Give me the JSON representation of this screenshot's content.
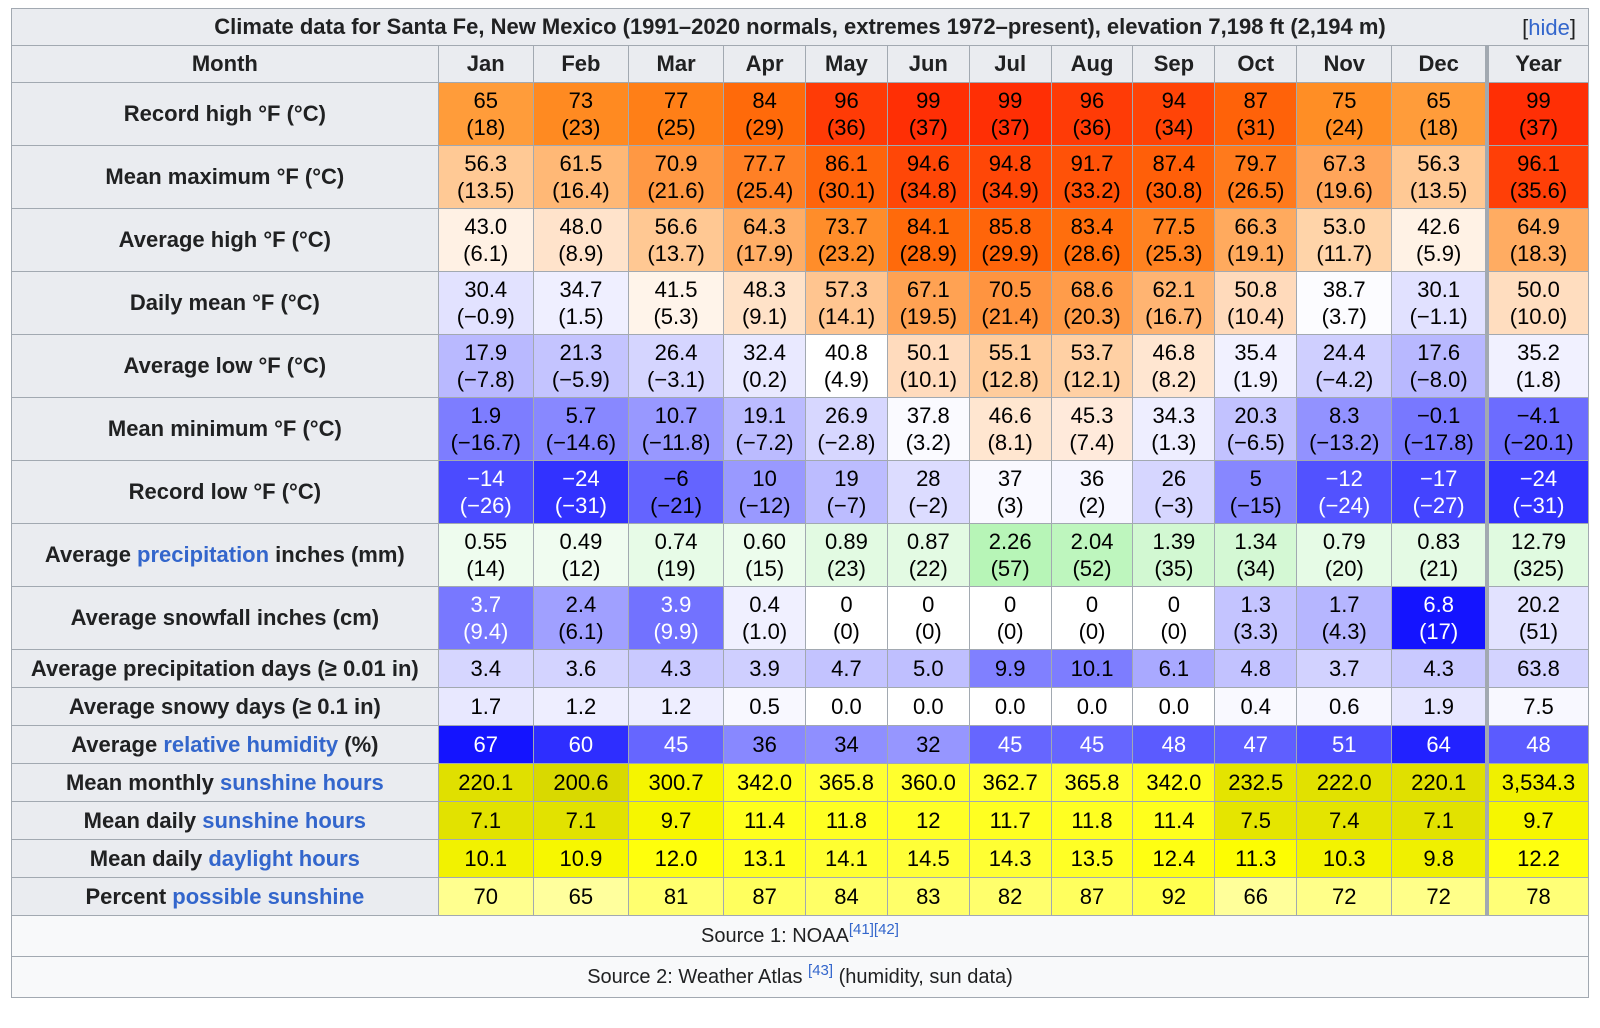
{
  "table": {
    "title": "Climate data for Santa Fe, New Mexico (1991–2020 normals, extremes 1972–present), elevation 7,198 ft (2,194 m)",
    "hide_label": "hide",
    "header": {
      "month_label": "Month",
      "months": [
        "Jan",
        "Feb",
        "Mar",
        "Apr",
        "May",
        "Jun",
        "Jul",
        "Aug",
        "Sep",
        "Oct",
        "Nov",
        "Dec",
        "Year"
      ]
    },
    "rows": [
      {
        "label_parts": [
          {
            "text": "Record high °F (°C)"
          }
        ],
        "tall": true,
        "values": [
          "65",
          "73",
          "77",
          "84",
          "96",
          "99",
          "99",
          "96",
          "94",
          "87",
          "75",
          "65",
          "99"
        ],
        "sub": [
          "(18)",
          "(23)",
          "(25)",
          "(29)",
          "(36)",
          "(37)",
          "(37)",
          "(36)",
          "(34)",
          "(31)",
          "(24)",
          "(18)",
          "(37)"
        ],
        "bg": [
          "#ff9c3a",
          "#ff8a21",
          "#ff7f17",
          "#ff6a0a",
          "#ff3b06",
          "#ff2f05",
          "#ff2f05",
          "#ff3b06",
          "#ff4407",
          "#ff6209",
          "#ff8e25",
          "#ff9c3a",
          "#ff2f05"
        ],
        "fg": [
          "#000000",
          "#000000",
          "#000000",
          "#000000",
          "#000000",
          "#000000",
          "#000000",
          "#000000",
          "#000000",
          "#000000",
          "#000000",
          "#000000",
          "#000000"
        ]
      },
      {
        "label_parts": [
          {
            "text": "Mean maximum °F (°C)"
          }
        ],
        "tall": true,
        "values": [
          "56.3",
          "61.5",
          "70.9",
          "77.7",
          "86.1",
          "94.6",
          "94.8",
          "91.7",
          "87.4",
          "79.7",
          "67.3",
          "56.3",
          "96.1"
        ],
        "sub": [
          "(13.5)",
          "(16.4)",
          "(21.6)",
          "(25.4)",
          "(30.1)",
          "(34.8)",
          "(34.9)",
          "(33.2)",
          "(30.8)",
          "(26.5)",
          "(19.6)",
          "(13.5)",
          "(35.6)"
        ],
        "bg": [
          "#ffc995",
          "#ffb876",
          "#ff9843",
          "#ff8025",
          "#ff640b",
          "#ff4707",
          "#ff4707",
          "#ff5208",
          "#ff5f09",
          "#ff7a1c",
          "#ffa55a",
          "#ffc995",
          "#ff3f07"
        ],
        "fg": [
          "#000000",
          "#000000",
          "#000000",
          "#000000",
          "#000000",
          "#000000",
          "#000000",
          "#000000",
          "#000000",
          "#000000",
          "#000000",
          "#000000",
          "#000000"
        ]
      },
      {
        "label_parts": [
          {
            "text": "Average high °F (°C)"
          }
        ],
        "tall": true,
        "values": [
          "43.0",
          "48.0",
          "56.6",
          "64.3",
          "73.7",
          "84.1",
          "85.8",
          "83.4",
          "77.5",
          "66.3",
          "53.0",
          "42.6",
          "64.9"
        ],
        "sub": [
          "(6.1)",
          "(8.9)",
          "(13.7)",
          "(17.9)",
          "(23.2)",
          "(28.9)",
          "(29.9)",
          "(28.6)",
          "(25.3)",
          "(19.1)",
          "(11.7)",
          "(5.9)",
          "(18.3)"
        ],
        "bg": [
          "#fff1e4",
          "#ffe3cb",
          "#ffc893",
          "#ffae66",
          "#ff8d2a",
          "#ff6a0b",
          "#ff650a",
          "#ff6e0d",
          "#ff8221",
          "#ffaa5e",
          "#ffd4a9",
          "#fff2e5",
          "#ffac62"
        ],
        "fg": [
          "#000000",
          "#000000",
          "#000000",
          "#000000",
          "#000000",
          "#000000",
          "#000000",
          "#000000",
          "#000000",
          "#000000",
          "#000000",
          "#000000",
          "#000000"
        ]
      },
      {
        "label_parts": [
          {
            "text": "Daily mean °F (°C)"
          }
        ],
        "tall": true,
        "values": [
          "30.4",
          "34.7",
          "41.5",
          "48.3",
          "57.3",
          "67.1",
          "70.5",
          "68.6",
          "62.1",
          "50.8",
          "38.7",
          "30.1",
          "50.0"
        ],
        "sub": [
          "(−0.9)",
          "(1.5)",
          "(5.3)",
          "(9.1)",
          "(14.1)",
          "(19.5)",
          "(21.4)",
          "(20.3)",
          "(16.7)",
          "(10.4)",
          "(3.7)",
          "(−1.1)",
          "(10.0)"
        ],
        "bg": [
          "#e2e2ff",
          "#efefff",
          "#fff4ea",
          "#ffe2c8",
          "#ffc590",
          "#ffa253",
          "#ff9440",
          "#ff9c4a",
          "#ffb472",
          "#ffdabb",
          "#fcfcff",
          "#e1e1ff",
          "#ffddbf"
        ],
        "fg": [
          "#000000",
          "#000000",
          "#000000",
          "#000000",
          "#000000",
          "#000000",
          "#000000",
          "#000000",
          "#000000",
          "#000000",
          "#000000",
          "#000000",
          "#000000"
        ]
      },
      {
        "label_parts": [
          {
            "text": "Average low °F (°C)"
          }
        ],
        "tall": true,
        "values": [
          "17.9",
          "21.3",
          "26.4",
          "32.4",
          "40.8",
          "50.1",
          "55.1",
          "53.7",
          "46.8",
          "35.4",
          "24.4",
          "17.6",
          "35.2"
        ],
        "sub": [
          "(−7.8)",
          "(−5.9)",
          "(−3.1)",
          "(0.2)",
          "(4.9)",
          "(10.1)",
          "(12.8)",
          "(12.1)",
          "(8.2)",
          "(1.9)",
          "(−4.2)",
          "(−8.0)",
          "(1.8)"
        ],
        "bg": [
          "#b9b9ff",
          "#c4c4ff",
          "#d5d5ff",
          "#e9e9ff",
          "#ffffff",
          "#ffdbbd",
          "#ffcc9c",
          "#ffd0a4",
          "#ffe6d1",
          "#f1f1ff",
          "#cfcfff",
          "#b8b8ff",
          "#f1f1ff"
        ],
        "fg": [
          "#000000",
          "#000000",
          "#000000",
          "#000000",
          "#000000",
          "#000000",
          "#000000",
          "#000000",
          "#000000",
          "#000000",
          "#000000",
          "#000000",
          "#000000"
        ]
      },
      {
        "label_parts": [
          {
            "text": "Mean minimum °F (°C)"
          }
        ],
        "tall": true,
        "values": [
          "1.9",
          "5.7",
          "10.7",
          "19.1",
          "26.9",
          "37.8",
          "46.6",
          "45.3",
          "34.3",
          "20.3",
          "8.3",
          "−0.1",
          "−4.1"
        ],
        "sub": [
          "(−16.7)",
          "(−14.6)",
          "(−11.8)",
          "(−7.2)",
          "(−2.8)",
          "(3.2)",
          "(8.1)",
          "(7.4)",
          "(1.3)",
          "(−6.5)",
          "(−13.2)",
          "(−17.8)",
          "(−20.1)"
        ],
        "bg": [
          "#7d7dff",
          "#8888ff",
          "#9898ff",
          "#bbbbff",
          "#d7d7ff",
          "#fafaff",
          "#ffe6d0",
          "#ffeadb",
          "#eeeeff",
          "#c2c2ff",
          "#9292ff",
          "#7878ff",
          "#6c6cff"
        ],
        "fg": [
          "#000000",
          "#000000",
          "#000000",
          "#000000",
          "#000000",
          "#000000",
          "#000000",
          "#000000",
          "#000000",
          "#000000",
          "#000000",
          "#000000",
          "#000000"
        ]
      },
      {
        "label_parts": [
          {
            "text": "Record low °F (°C)"
          }
        ],
        "tall": true,
        "values": [
          "−14",
          "−24",
          "−6",
          "10",
          "19",
          "28",
          "37",
          "36",
          "26",
          "5",
          "−12",
          "−17",
          "−24"
        ],
        "sub": [
          "(−26)",
          "(−31)",
          "(−21)",
          "(−12)",
          "(−7)",
          "(−2)",
          "(3)",
          "(2)",
          "(−3)",
          "(−15)",
          "(−24)",
          "(−27)",
          "(−31)"
        ],
        "bg": [
          "#4b4bff",
          "#3232ff",
          "#6464ff",
          "#9999ff",
          "#bcbcff",
          "#dcdcff",
          "#f9f9ff",
          "#f6f6ff",
          "#d6d6ff",
          "#8787ff",
          "#5252ff",
          "#4444ff",
          "#3232ff"
        ],
        "fg": [
          "#ffffff",
          "#ffffff",
          "#000000",
          "#000000",
          "#000000",
          "#000000",
          "#000000",
          "#000000",
          "#000000",
          "#000000",
          "#ffffff",
          "#ffffff",
          "#ffffff"
        ]
      },
      {
        "label_parts": [
          {
            "text": "Average "
          },
          {
            "text": "precipitation",
            "link": true
          },
          {
            "text": " inches (mm)"
          }
        ],
        "tall": true,
        "values": [
          "0.55",
          "0.49",
          "0.74",
          "0.60",
          "0.89",
          "0.87",
          "2.26",
          "2.04",
          "1.39",
          "1.34",
          "0.79",
          "0.83",
          "12.79"
        ],
        "sub": [
          "(14)",
          "(12)",
          "(19)",
          "(15)",
          "(23)",
          "(22)",
          "(57)",
          "(52)",
          "(35)",
          "(34)",
          "(20)",
          "(21)",
          "(325)"
        ],
        "bg": [
          "#eefcee",
          "#f0fcf0",
          "#e7fbe7",
          "#ecfcec",
          "#e2fae2",
          "#e3fae3",
          "#b7f5b7",
          "#bef6be",
          "#d2f8d2",
          "#d4f8d4",
          "#e6fbe6",
          "#e4fae4",
          "#e0fae0"
        ],
        "fg": [
          "#000000",
          "#000000",
          "#000000",
          "#000000",
          "#000000",
          "#000000",
          "#000000",
          "#000000",
          "#000000",
          "#000000",
          "#000000",
          "#000000",
          "#000000"
        ]
      },
      {
        "label_parts": [
          {
            "text": "Average snowfall inches (cm)"
          }
        ],
        "tall": true,
        "values": [
          "3.7",
          "2.4",
          "3.9",
          "0.4",
          "0",
          "0",
          "0",
          "0",
          "0",
          "1.3",
          "1.7",
          "6.8",
          "20.2"
        ],
        "sub": [
          "(9.4)",
          "(6.1)",
          "(9.9)",
          "(1.0)",
          "(0)",
          "(0)",
          "(0)",
          "(0)",
          "(0)",
          "(3.3)",
          "(4.3)",
          "(17)",
          "(51)"
        ],
        "bg": [
          "#7878ff",
          "#a0a0ff",
          "#7272ff",
          "#f0f0ff",
          "#ffffff",
          "#ffffff",
          "#ffffff",
          "#ffffff",
          "#ffffff",
          "#c4c4ff",
          "#b6b6ff",
          "#1414ff",
          "#e2e2ff"
        ],
        "fg": [
          "#ffffff",
          "#000000",
          "#ffffff",
          "#000000",
          "#000000",
          "#000000",
          "#000000",
          "#000000",
          "#000000",
          "#000000",
          "#000000",
          "#ffffff",
          "#000000"
        ]
      },
      {
        "label_parts": [
          {
            "text": "Average precipitation days (≥ 0.01 in)"
          }
        ],
        "tall": false,
        "values": [
          "3.4",
          "3.6",
          "4.3",
          "3.9",
          "4.7",
          "5.0",
          "9.9",
          "10.1",
          "6.1",
          "4.8",
          "3.7",
          "4.3",
          "63.8"
        ],
        "bg": [
          "#d6d6ff",
          "#d3d3ff",
          "#c9c9ff",
          "#cfcfff",
          "#c3c3ff",
          "#bfbfff",
          "#8080ff",
          "#7d7dff",
          "#a9a9ff",
          "#c2c2ff",
          "#d2d2ff",
          "#c9c9ff",
          "#d3d3ff"
        ],
        "fg": [
          "#000000",
          "#000000",
          "#000000",
          "#000000",
          "#000000",
          "#000000",
          "#000000",
          "#000000",
          "#000000",
          "#000000",
          "#000000",
          "#000000",
          "#000000"
        ]
      },
      {
        "label_parts": [
          {
            "text": "Average snowy days (≥ 0.1 in)"
          }
        ],
        "tall": false,
        "values": [
          "1.7",
          "1.2",
          "1.2",
          "0.5",
          "0.0",
          "0.0",
          "0.0",
          "0.0",
          "0.0",
          "0.4",
          "0.6",
          "1.9",
          "7.5"
        ],
        "bg": [
          "#e8e8ff",
          "#eeeeff",
          "#eeeeff",
          "#f8f8ff",
          "#ffffff",
          "#ffffff",
          "#ffffff",
          "#ffffff",
          "#ffffff",
          "#f9f9ff",
          "#f7f7ff",
          "#e6e6ff",
          "#f8f8ff"
        ],
        "fg": [
          "#000000",
          "#000000",
          "#000000",
          "#000000",
          "#000000",
          "#000000",
          "#000000",
          "#000000",
          "#000000",
          "#000000",
          "#000000",
          "#000000",
          "#000000"
        ]
      },
      {
        "label_parts": [
          {
            "text": "Average "
          },
          {
            "text": "relative humidity",
            "link": true
          },
          {
            "text": " (%)"
          }
        ],
        "tall": false,
        "values": [
          "67",
          "60",
          "45",
          "36",
          "34",
          "32",
          "45",
          "45",
          "48",
          "47",
          "51",
          "64",
          "48"
        ],
        "bg": [
          "#1414ff",
          "#2e2eff",
          "#6666ff",
          "#8888ff",
          "#8f8fff",
          "#9696ff",
          "#6666ff",
          "#6666ff",
          "#5b5bff",
          "#5f5fff",
          "#5050ff",
          "#2222ff",
          "#5b5bff"
        ],
        "fg": [
          "#ffffff",
          "#ffffff",
          "#ffffff",
          "#000000",
          "#000000",
          "#000000",
          "#ffffff",
          "#ffffff",
          "#ffffff",
          "#ffffff",
          "#ffffff",
          "#ffffff",
          "#ffffff"
        ]
      },
      {
        "label_parts": [
          {
            "text": "Mean monthly "
          },
          {
            "text": "sunshine hours",
            "link": true
          }
        ],
        "tall": false,
        "values": [
          "220.1",
          "200.6",
          "300.7",
          "342.0",
          "365.8",
          "360.0",
          "362.7",
          "365.8",
          "342.0",
          "232.5",
          "222.0",
          "220.1",
          "3,534.3"
        ],
        "bg": [
          "#e0e000",
          "#d9d900",
          "#f5f500",
          "#fefe20",
          "#ffff33",
          "#ffff2d",
          "#ffff30",
          "#ffff33",
          "#fefe20",
          "#e4e400",
          "#e1e100",
          "#e0e000",
          "#f0f000"
        ],
        "fg": [
          "#000000",
          "#000000",
          "#000000",
          "#000000",
          "#000000",
          "#000000",
          "#000000",
          "#000000",
          "#000000",
          "#000000",
          "#000000",
          "#000000",
          "#000000"
        ]
      },
      {
        "label_parts": [
          {
            "text": "Mean daily "
          },
          {
            "text": "sunshine hours",
            "link": true
          }
        ],
        "tall": false,
        "values": [
          "7.1",
          "7.1",
          "9.7",
          "11.4",
          "11.8",
          "12",
          "11.7",
          "11.8",
          "11.4",
          "7.5",
          "7.4",
          "7.1",
          "9.7"
        ],
        "bg": [
          "#e2e200",
          "#e2e200",
          "#f6f600",
          "#ffff1c",
          "#ffff22",
          "#ffff26",
          "#ffff21",
          "#ffff22",
          "#ffff1c",
          "#e5e500",
          "#e4e400",
          "#e2e200",
          "#f6f600"
        ],
        "fg": [
          "#000000",
          "#000000",
          "#000000",
          "#000000",
          "#000000",
          "#000000",
          "#000000",
          "#000000",
          "#000000",
          "#000000",
          "#000000",
          "#000000",
          "#000000"
        ]
      },
      {
        "label_parts": [
          {
            "text": "Mean daily "
          },
          {
            "text": "daylight hours",
            "link": true
          }
        ],
        "tall": false,
        "values": [
          "10.1",
          "10.9",
          "12.0",
          "13.1",
          "14.1",
          "14.5",
          "14.3",
          "13.5",
          "12.4",
          "11.3",
          "10.3",
          "9.8",
          "12.2"
        ],
        "bg": [
          "#f2f200",
          "#f7f700",
          "#ffff0c",
          "#ffff1e",
          "#ffff30",
          "#ffff37",
          "#ffff33",
          "#ffff25",
          "#ffff12",
          "#fdfd02",
          "#f3f300",
          "#f0f000",
          "#ffff0f"
        ],
        "fg": [
          "#000000",
          "#000000",
          "#000000",
          "#000000",
          "#000000",
          "#000000",
          "#000000",
          "#000000",
          "#000000",
          "#000000",
          "#000000",
          "#000000",
          "#000000"
        ]
      },
      {
        "label_parts": [
          {
            "text": "Percent "
          },
          {
            "text": "possible sunshine",
            "link": true
          }
        ],
        "tall": false,
        "values": [
          "70",
          "65",
          "81",
          "87",
          "84",
          "83",
          "82",
          "87",
          "92",
          "66",
          "72",
          "72",
          "78"
        ],
        "bg": [
          "#ffff8f",
          "#ffff9d",
          "#ffff6f",
          "#ffff5e",
          "#ffff66",
          "#ffff69",
          "#ffff6c",
          "#ffff5e",
          "#ffff50",
          "#ffff9a",
          "#ffff89",
          "#ffff89",
          "#ffff77"
        ],
        "fg": [
          "#000000",
          "#000000",
          "#000000",
          "#000000",
          "#000000",
          "#000000",
          "#000000",
          "#000000",
          "#000000",
          "#000000",
          "#000000",
          "#000000",
          "#000000"
        ]
      }
    ],
    "source1": {
      "text": "Source 1: NOAA",
      "refs": "[41][42]"
    },
    "source2": {
      "before": "Source 2: Weather Atlas ",
      "ref": "[43]",
      "after": " (humidity, sun data)"
    }
  }
}
